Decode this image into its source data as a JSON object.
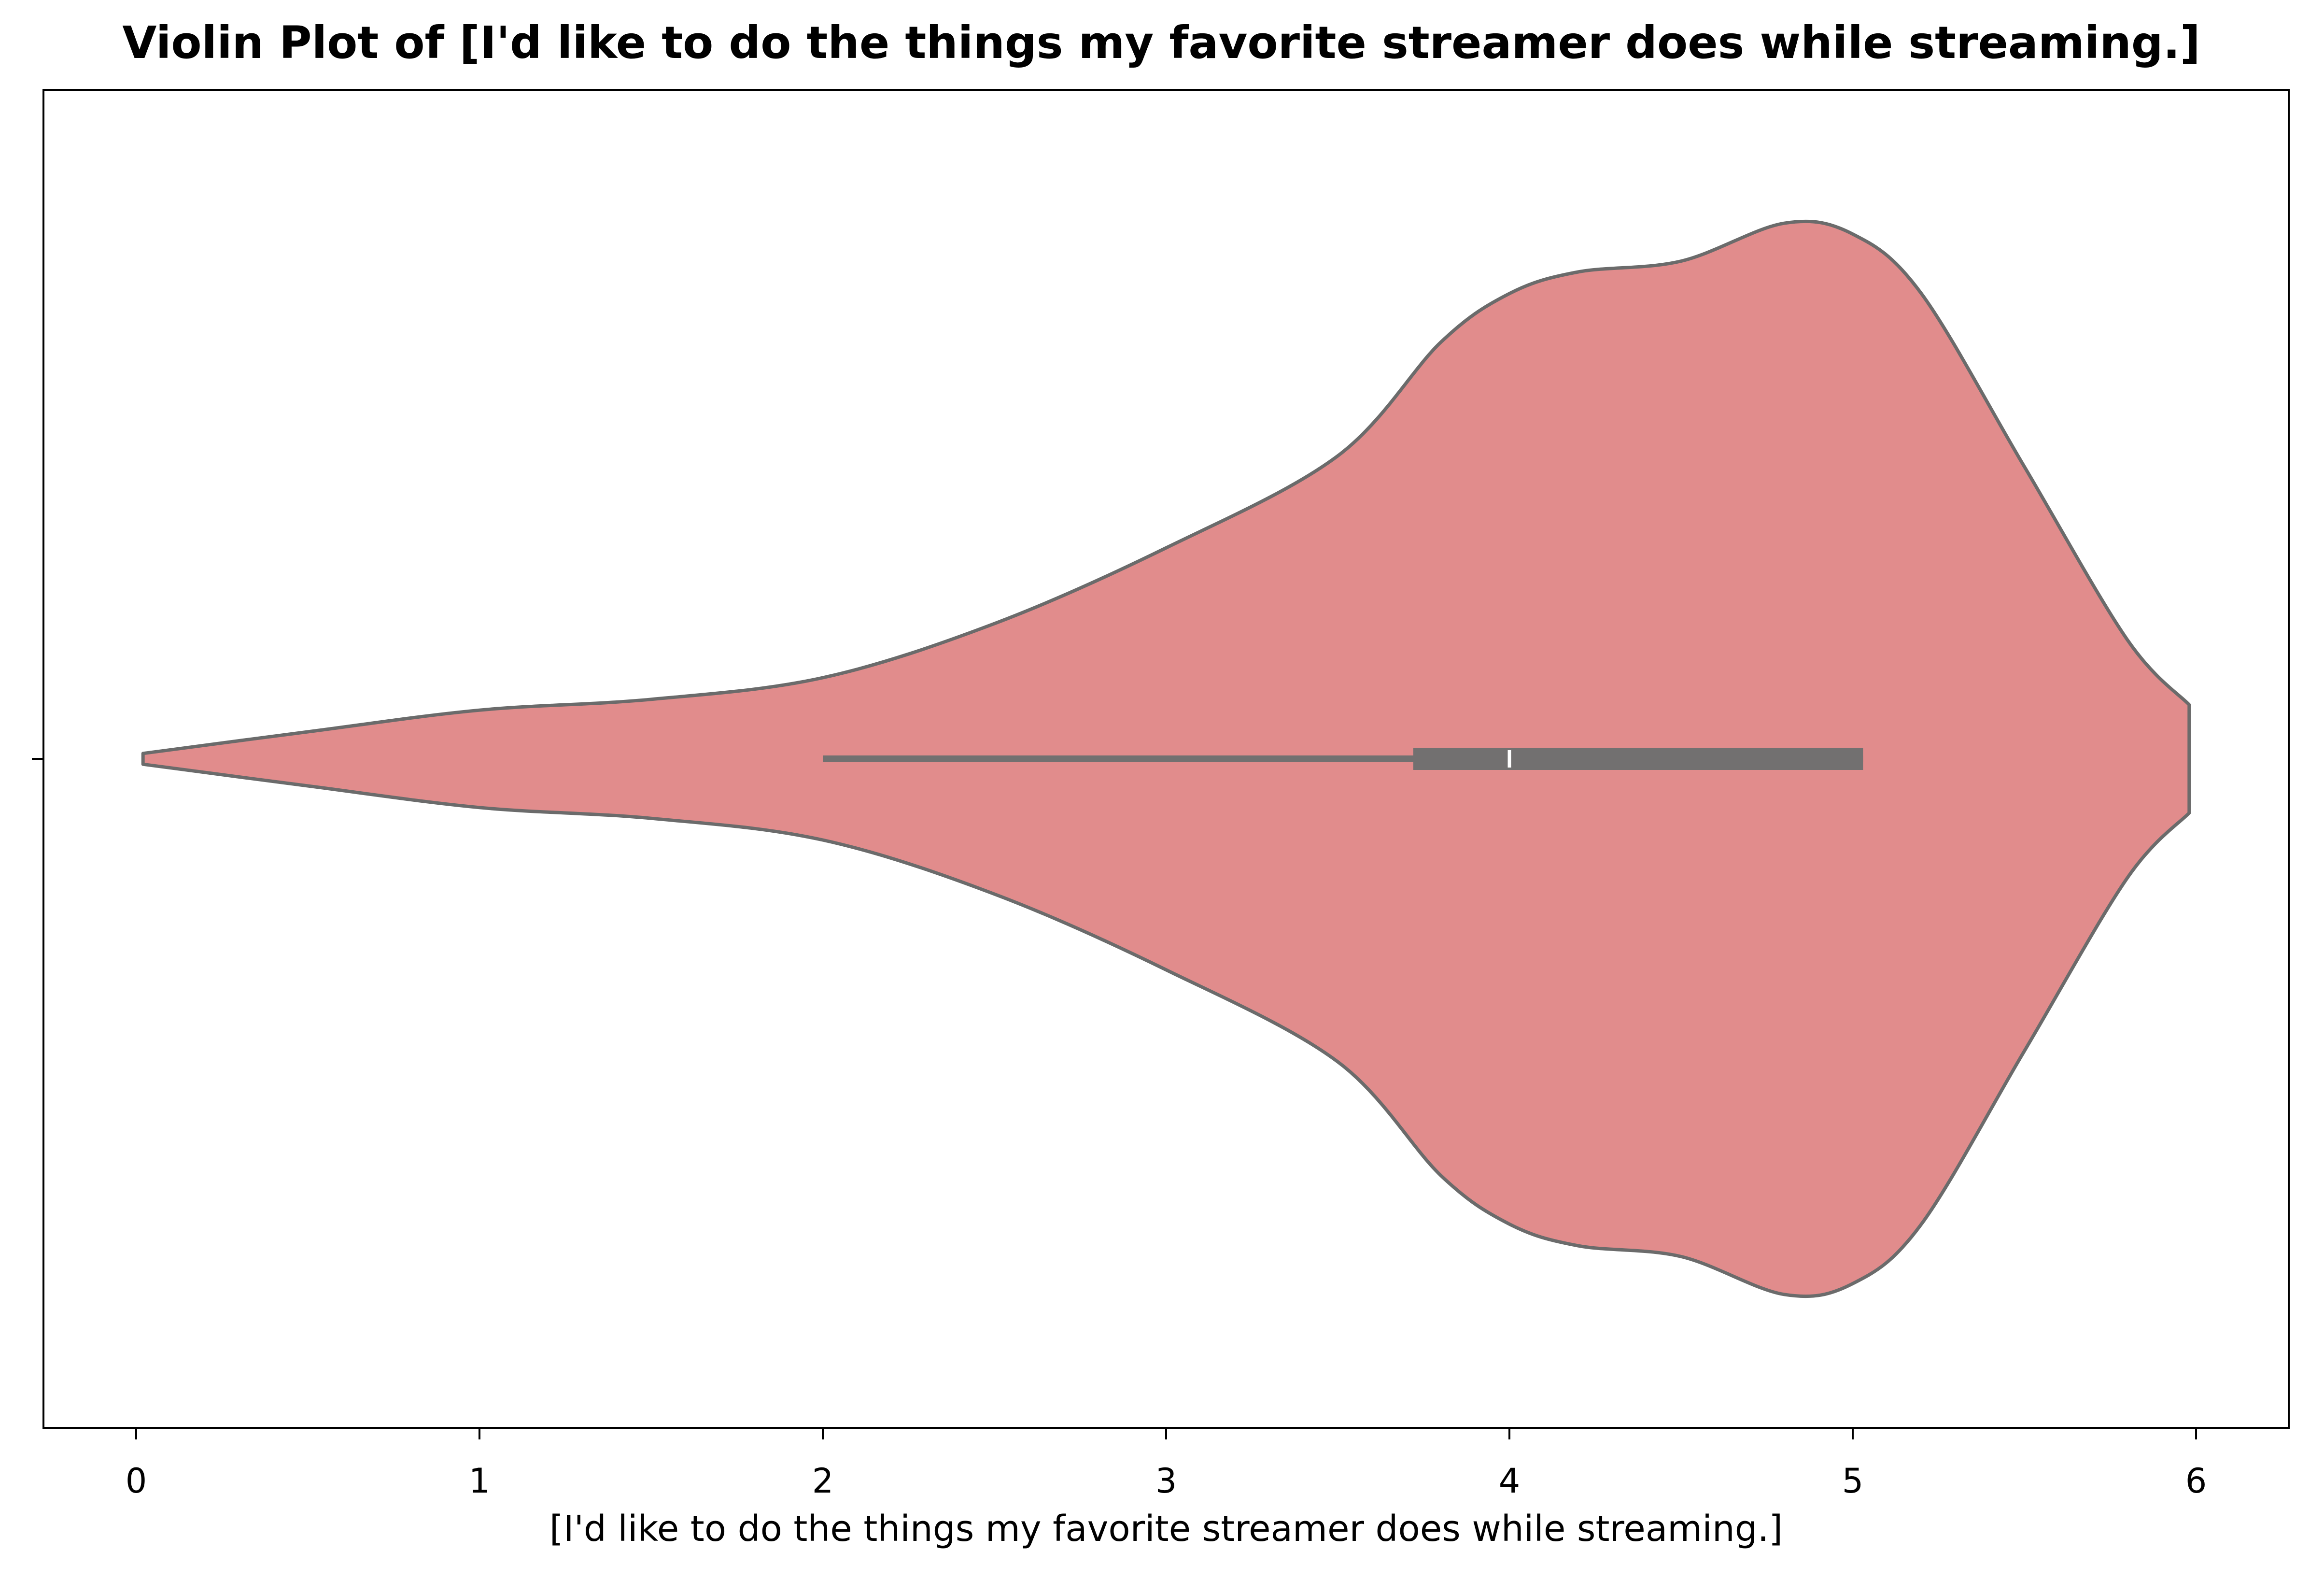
{
  "chart_data": {
    "type": "violin",
    "title": "Violin Plot of [I'd like to do the things my favorite streamer does while streaming.]",
    "xlabel": "[I'd like to do the things my favorite streamer does while streaming.]",
    "ylabel": "",
    "xlim": [
      -0.27,
      6.27
    ],
    "xticks": [
      0,
      1,
      2,
      3,
      4,
      5,
      6
    ],
    "xtick_labels": [
      "0",
      "1",
      "2",
      "3",
      "4",
      "5",
      "6"
    ],
    "grid": false,
    "orientation": "horizontal",
    "fill_color": "#e18c8c",
    "line_color": "#6b6b6b",
    "density_profile": [
      {
        "x": 0.02,
        "density": 0.01
      },
      {
        "x": 0.5,
        "density": 0.05
      },
      {
        "x": 1.0,
        "density": 0.09
      },
      {
        "x": 1.5,
        "density": 0.11
      },
      {
        "x": 2.0,
        "density": 0.15
      },
      {
        "x": 2.5,
        "density": 0.25
      },
      {
        "x": 3.0,
        "density": 0.39
      },
      {
        "x": 3.5,
        "density": 0.56
      },
      {
        "x": 3.8,
        "density": 0.77
      },
      {
        "x": 4.0,
        "density": 0.86
      },
      {
        "x": 4.2,
        "density": 0.9
      },
      {
        "x": 4.5,
        "density": 0.92
      },
      {
        "x": 4.8,
        "density": 0.99
      },
      {
        "x": 5.0,
        "density": 0.97
      },
      {
        "x": 5.2,
        "density": 0.86
      },
      {
        "x": 5.5,
        "density": 0.54
      },
      {
        "x": 5.8,
        "density": 0.22
      },
      {
        "x": 5.98,
        "density": 0.1
      }
    ],
    "box": {
      "whisker_low": 2.0,
      "q1": 3.72,
      "median": 4.0,
      "q3": 5.03,
      "whisker_high": 5.03
    }
  }
}
